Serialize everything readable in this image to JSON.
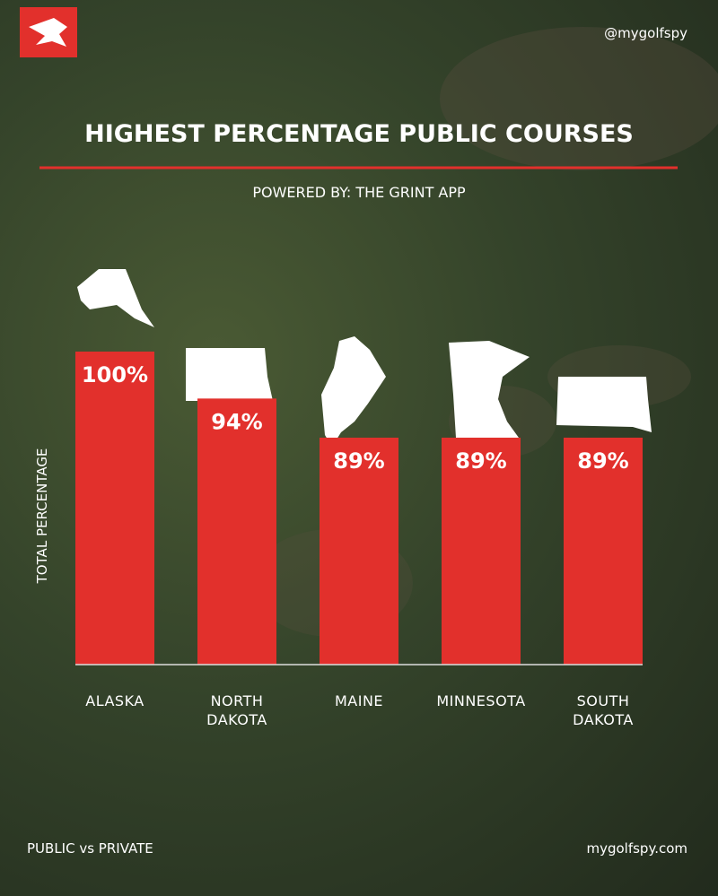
{
  "header": {
    "handle": "@mygolfspy"
  },
  "chart_data": {
    "type": "bar",
    "title": "HIGHEST PERCENTAGE PUBLIC COURSES",
    "subtitle": "POWERED BY: THE GRINT APP",
    "y_label": "TOTAL PERCENTAGE",
    "categories": [
      "ALASKA",
      "NORTH DAKOTA",
      "MAINE",
      "MINNESOTA",
      "SOUTH DAKOTA"
    ],
    "values": [
      100,
      94,
      89,
      89,
      89
    ],
    "value_labels": [
      "100%",
      "94%",
      "89%",
      "89%",
      "89%"
    ],
    "color": "#e2302c",
    "ylim": [
      60,
      100
    ]
  },
  "footer": {
    "left": "PUBLIC vs PRIVATE",
    "right": "mygolfspy.com"
  }
}
